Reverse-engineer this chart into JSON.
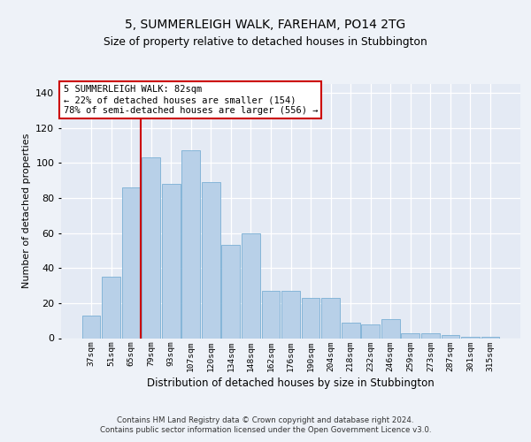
{
  "title1": "5, SUMMERLEIGH WALK, FAREHAM, PO14 2TG",
  "title2": "Size of property relative to detached houses in Stubbington",
  "xlabel": "Distribution of detached houses by size in Stubbington",
  "ylabel": "Number of detached properties",
  "categories": [
    "37sqm",
    "51sqm",
    "65sqm",
    "79sqm",
    "93sqm",
    "107sqm",
    "120sqm",
    "134sqm",
    "148sqm",
    "162sqm",
    "176sqm",
    "190sqm",
    "204sqm",
    "218sqm",
    "232sqm",
    "246sqm",
    "259sqm",
    "273sqm",
    "287sqm",
    "301sqm",
    "315sqm"
  ],
  "bar_values": [
    13,
    35,
    86,
    103,
    88,
    107,
    89,
    53,
    60,
    27,
    27,
    23,
    23,
    9,
    8,
    11,
    3,
    3,
    2,
    1,
    1
  ],
  "bar_color": "#b8d0e8",
  "bar_edge_color": "#7aafd4",
  "vline_color": "#cc0000",
  "vline_index": 3.0,
  "annotation_text": "5 SUMMERLEIGH WALK: 82sqm\n← 22% of detached houses are smaller (154)\n78% of semi-detached houses are larger (556) →",
  "annotation_box_color": "#ffffff",
  "annotation_box_edge": "#cc0000",
  "footer": "Contains HM Land Registry data © Crown copyright and database right 2024.\nContains public sector information licensed under the Open Government Licence v3.0.",
  "ylim": [
    0,
    145
  ],
  "yticks": [
    0,
    20,
    40,
    60,
    80,
    100,
    120,
    140
  ],
  "background_color": "#eef2f8",
  "plot_bg": "#e4eaf4"
}
